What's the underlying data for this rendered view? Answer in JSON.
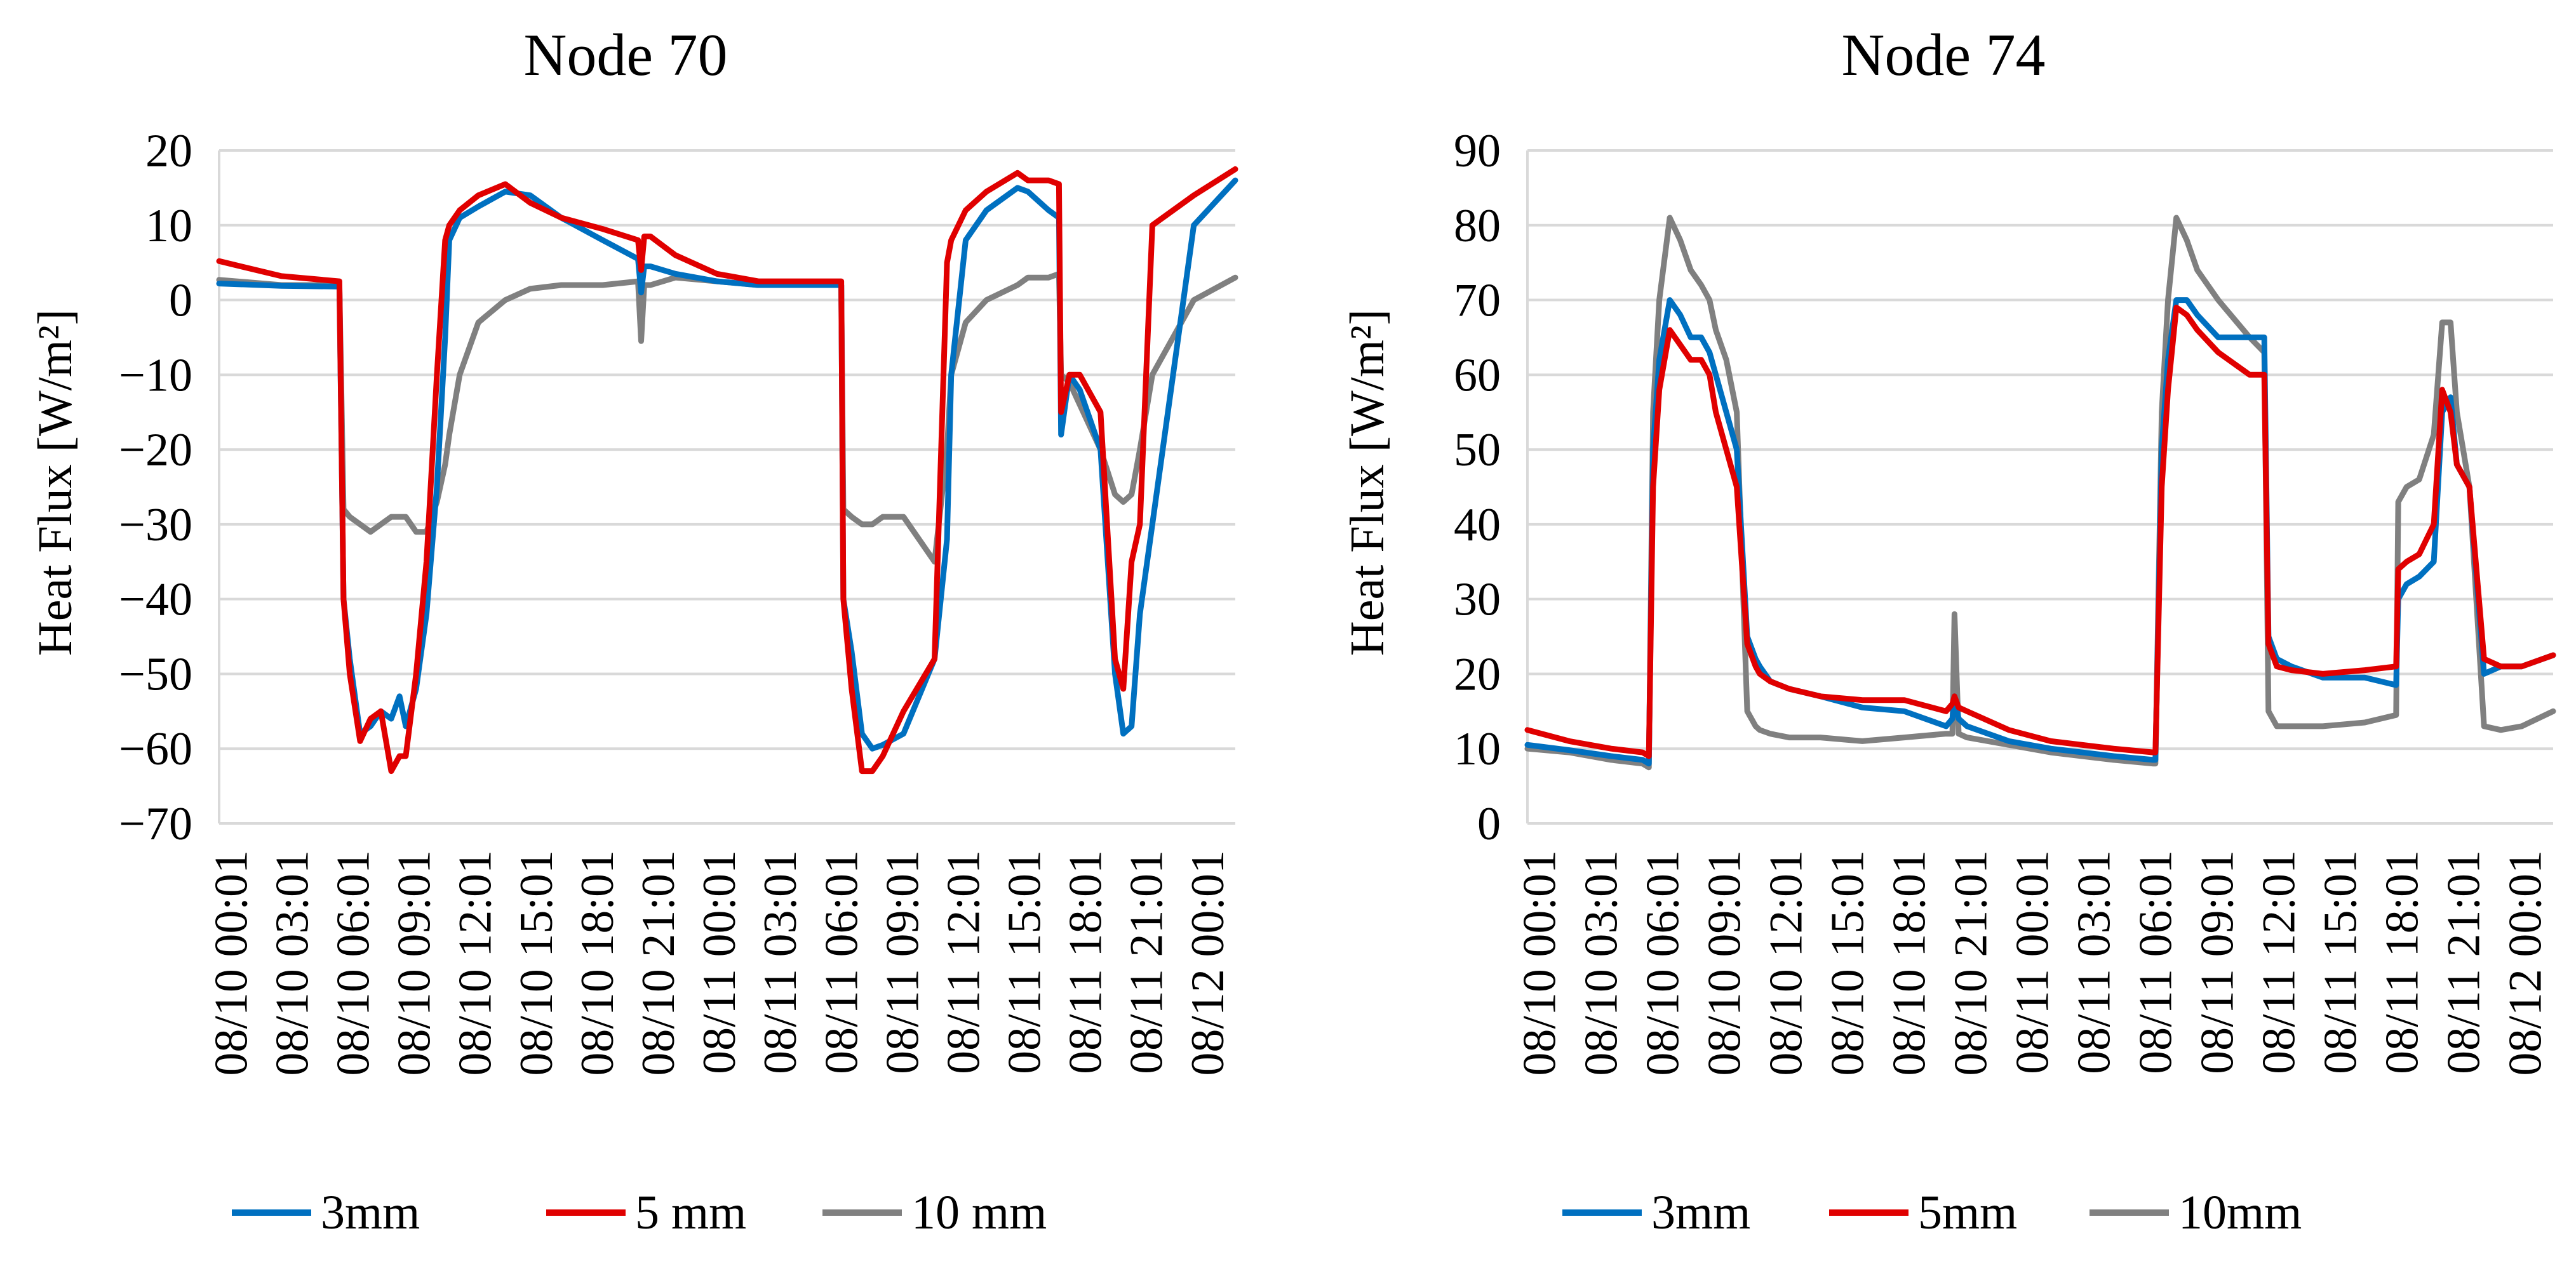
{
  "chart_data": [
    {
      "type": "line",
      "title": "Node 70",
      "xlabel": "",
      "ylabel": "Heat Flux [W/m²]",
      "ylim": [
        -70,
        20
      ],
      "yticks": [
        20,
        10,
        0,
        -10,
        -20,
        -30,
        -40,
        -50,
        -60,
        -70
      ],
      "ytick_labels": [
        "20",
        "10",
        "0",
        "−10",
        "−20",
        "−30",
        "−40",
        "−50",
        "−60",
        "−70"
      ],
      "x_range_hours": [
        0,
        49
      ],
      "xtick_labels": [
        "08/10  00:01",
        "08/10  03:01",
        "08/10  06:01",
        "08/10  09:01",
        "08/10  12:01",
        "08/10  15:01",
        "08/10  18:01",
        "08/10  21:01",
        "08/11  00:01",
        "08/11  03:01",
        "08/11  06:01",
        "08/11  09:01",
        "08/11  12:01",
        "08/11  15:01",
        "08/11  18:01",
        "08/11  21:01",
        "08/12  00:01"
      ],
      "grid": true,
      "legend_position": "bottom",
      "series": [
        {
          "name": "3mm",
          "color": "#0070c0",
          "x": [
            0,
            3,
            5.8,
            6,
            6.3,
            6.8,
            7.3,
            7.8,
            8.3,
            8.7,
            9,
            9.5,
            10,
            10.5,
            10.9,
            11.1,
            11.6,
            12.5,
            13.8,
            15,
            16.5,
            18.5,
            20.2,
            20.35,
            20.5,
            20.8,
            22,
            24,
            26,
            30,
            30.1,
            30.5,
            31,
            31.5,
            32,
            33,
            34.5,
            35.1,
            35.3,
            36,
            37,
            38.5,
            39,
            40,
            40.5,
            40.6,
            41,
            41.5,
            42.5,
            43.2,
            43.6,
            44,
            44.4,
            45,
            47,
            49
          ],
          "y": [
            2.2,
            1.9,
            1.8,
            -40,
            -48,
            -58,
            -57,
            -55,
            -56,
            -53,
            -57,
            -52,
            -42,
            -25,
            -5,
            8,
            11,
            12.5,
            14.5,
            14,
            11,
            8,
            5.5,
            1,
            4.5,
            4.5,
            3.5,
            2.5,
            2,
            2,
            -40,
            -47,
            -58,
            -60,
            -59.5,
            -58,
            -48,
            -32,
            -10,
            8,
            12,
            15,
            14.5,
            12,
            11,
            -18,
            -10,
            -12,
            -20,
            -50,
            -58,
            -57,
            -42,
            -30,
            10,
            16
          ]
        },
        {
          "name": "5 mm",
          "color": "#e00000",
          "x": [
            0,
            3,
            5.8,
            6,
            6.3,
            6.8,
            7.3,
            7.8,
            8.3,
            8.7,
            9,
            9.5,
            10,
            10.5,
            10.9,
            11.1,
            11.6,
            12.5,
            13.8,
            15,
            16.5,
            18.5,
            20.2,
            20.35,
            20.5,
            20.8,
            22,
            24,
            26,
            30,
            30.1,
            30.5,
            31,
            31.5,
            32,
            33,
            34.5,
            35.1,
            35.3,
            36,
            37,
            38.5,
            39,
            40,
            40.5,
            40.6,
            41,
            41.5,
            42.5,
            43.2,
            43.6,
            44,
            44.4,
            45,
            47,
            49
          ],
          "y": [
            5.2,
            3.2,
            2.5,
            -40,
            -50,
            -59,
            -56,
            -55,
            -63,
            -61,
            -61,
            -50,
            -35,
            -10,
            8,
            10,
            12,
            14,
            15.5,
            13,
            11,
            9.5,
            8,
            4,
            8.5,
            8.5,
            6,
            3.5,
            2.5,
            2.5,
            -40,
            -52,
            -63,
            -63,
            -61,
            -55,
            -48,
            5,
            8,
            12,
            14.5,
            17,
            16,
            16,
            15.5,
            -15,
            -10,
            -10,
            -15,
            -48,
            -52,
            -35,
            -30,
            10,
            14,
            17.5
          ]
        },
        {
          "name": "10 mm",
          "color": "#808080",
          "x": [
            0,
            3,
            5.8,
            6,
            6.3,
            6.8,
            7.3,
            7.8,
            8.3,
            8.7,
            9,
            9.5,
            10,
            10.5,
            10.9,
            11.1,
            11.6,
            12.5,
            13.8,
            15,
            16.5,
            18.5,
            20.2,
            20.35,
            20.5,
            20.8,
            22,
            24,
            26,
            30,
            30.1,
            30.5,
            31,
            31.5,
            32,
            33,
            34.5,
            35.1,
            35.3,
            36,
            37,
            38.5,
            39,
            40,
            40.5,
            40.6,
            41,
            41.5,
            42.5,
            43.2,
            43.6,
            44,
            44.4,
            45,
            47,
            49
          ],
          "y": [
            2.7,
            2,
            2,
            -28,
            -29,
            -30,
            -31,
            -30,
            -29,
            -29,
            -29,
            -31,
            -31,
            -27,
            -22,
            -18,
            -10,
            -3,
            0,
            1.5,
            2,
            2,
            2.5,
            -5.5,
            2,
            2,
            3,
            2.5,
            2,
            2,
            -28,
            -29,
            -30,
            -30,
            -29,
            -29,
            -35,
            -20,
            -10,
            -3,
            0,
            2,
            3,
            3,
            3.5,
            -10,
            -11,
            -14,
            -20,
            -26,
            -27,
            -26,
            -20,
            -10,
            0,
            3
          ]
        }
      ]
    },
    {
      "type": "line",
      "title": "Node 74",
      "xlabel": "",
      "ylabel": "Heat Flux [W/m²]",
      "ylim": [
        0,
        90
      ],
      "yticks": [
        90,
        80,
        70,
        60,
        50,
        40,
        30,
        20,
        10,
        0
      ],
      "ytick_labels": [
        "90",
        "80",
        "70",
        "60",
        "50",
        "40",
        "30",
        "20",
        "10",
        "0"
      ],
      "x_range_hours": [
        0,
        49
      ],
      "xtick_labels": [
        "08/10  00:01",
        "08/10  03:01",
        "08/10  06:01",
        "08/10  09:01",
        "08/10  12:01",
        "08/10  15:01",
        "08/10  18:01",
        "08/10  21:01",
        "08/11  00:01",
        "08/11  03:01",
        "08/11  06:01",
        "08/11  09:01",
        "08/11  12:01",
        "08/11  15:01",
        "08/11  18:01",
        "08/11  21:01",
        "08/12  00:01"
      ],
      "grid": true,
      "legend_position": "bottom",
      "series": [
        {
          "name": "3mm",
          "color": "#0070c0",
          "x": [
            0,
            2,
            4,
            5.5,
            5.8,
            6,
            6.3,
            6.8,
            7.3,
            7.8,
            8.3,
            8.7,
            9,
            9.5,
            10,
            10.5,
            10.9,
            11.1,
            11.6,
            12.5,
            14,
            16,
            18,
            20,
            20.3,
            20.4,
            20.6,
            21,
            23,
            25,
            28,
            29.9,
            30,
            30.3,
            30.6,
            31,
            31.5,
            32,
            33,
            34.5,
            35.2,
            35.4,
            35.8,
            36.5,
            38,
            40,
            41.5,
            41.6,
            42,
            42.6,
            43.3,
            43.7,
            44.1,
            44.4,
            45,
            45.7,
            46.5,
            47.5,
            49
          ],
          "y": [
            10.5,
            9.8,
            9,
            8.5,
            8,
            50,
            62,
            70,
            68,
            65,
            65,
            63,
            60,
            55,
            50,
            25,
            22,
            21,
            19,
            18,
            17,
            15.5,
            15,
            13,
            14,
            17,
            14,
            13,
            11,
            10,
            9,
            8.5,
            8.5,
            50,
            62,
            70,
            70,
            68,
            65,
            65,
            65,
            25,
            22,
            21,
            19.5,
            19.5,
            18.5,
            30,
            32,
            33,
            35,
            55,
            57,
            48,
            45,
            20,
            21,
            21,
            22.5
          ]
        },
        {
          "name": "5mm",
          "color": "#e00000",
          "x": [
            0,
            2,
            4,
            5.5,
            5.8,
            6,
            6.3,
            6.8,
            7.3,
            7.8,
            8.3,
            8.7,
            9,
            9.5,
            10,
            10.5,
            10.9,
            11.1,
            11.6,
            12.5,
            14,
            16,
            18,
            20,
            20.3,
            20.4,
            20.6,
            21,
            23,
            25,
            28,
            29.9,
            30,
            30.3,
            30.6,
            31,
            31.5,
            32,
            33,
            34.5,
            35.2,
            35.4,
            35.8,
            36.5,
            38,
            40,
            41.5,
            41.6,
            42,
            42.6,
            43.3,
            43.7,
            44.1,
            44.4,
            45,
            45.7,
            46.5,
            47.5,
            49
          ],
          "y": [
            12.5,
            11,
            10,
            9.5,
            9,
            45,
            58,
            66,
            64,
            62,
            62,
            60,
            55,
            50,
            45,
            24,
            21,
            20,
            19,
            18,
            17,
            16.5,
            16.5,
            15,
            16,
            17,
            15.5,
            15,
            12.5,
            11,
            10,
            9.5,
            9.5,
            45,
            58,
            69,
            68,
            66,
            63,
            60,
            60,
            24,
            21,
            20.5,
            20,
            20.5,
            21,
            34,
            35,
            36,
            40,
            58,
            55,
            48,
            45,
            22,
            21,
            21,
            22.5
          ]
        },
        {
          "name": "10mm",
          "color": "#808080",
          "x": [
            0,
            2,
            4,
            5.5,
            5.8,
            6,
            6.3,
            6.8,
            7.3,
            7.8,
            8.3,
            8.7,
            9,
            9.5,
            10,
            10.5,
            10.9,
            11.1,
            11.6,
            12.5,
            14,
            16,
            18,
            20,
            20.3,
            20.4,
            20.6,
            21,
            23,
            25,
            28,
            29.9,
            30,
            30.3,
            30.6,
            31,
            31.5,
            32,
            33,
            34.5,
            35.2,
            35.4,
            35.8,
            36.5,
            38,
            40,
            41.5,
            41.6,
            42,
            42.6,
            43.3,
            43.7,
            44.1,
            44.4,
            45,
            45.7,
            46.5,
            47.5,
            49
          ],
          "y": [
            10,
            9.5,
            8.5,
            8,
            7.5,
            55,
            70,
            81,
            78,
            74,
            72,
            70,
            66,
            62,
            55,
            15,
            13,
            12.5,
            12,
            11.5,
            11.5,
            11,
            11.5,
            12,
            12,
            28,
            12,
            11.5,
            10.5,
            9.5,
            8.5,
            8,
            8,
            55,
            70,
            81,
            78,
            74,
            70,
            65,
            63,
            15,
            13,
            13,
            13,
            13.5,
            14.5,
            43,
            45,
            46,
            52,
            67,
            67,
            55,
            45,
            13,
            12.5,
            13,
            15
          ]
        }
      ]
    }
  ]
}
